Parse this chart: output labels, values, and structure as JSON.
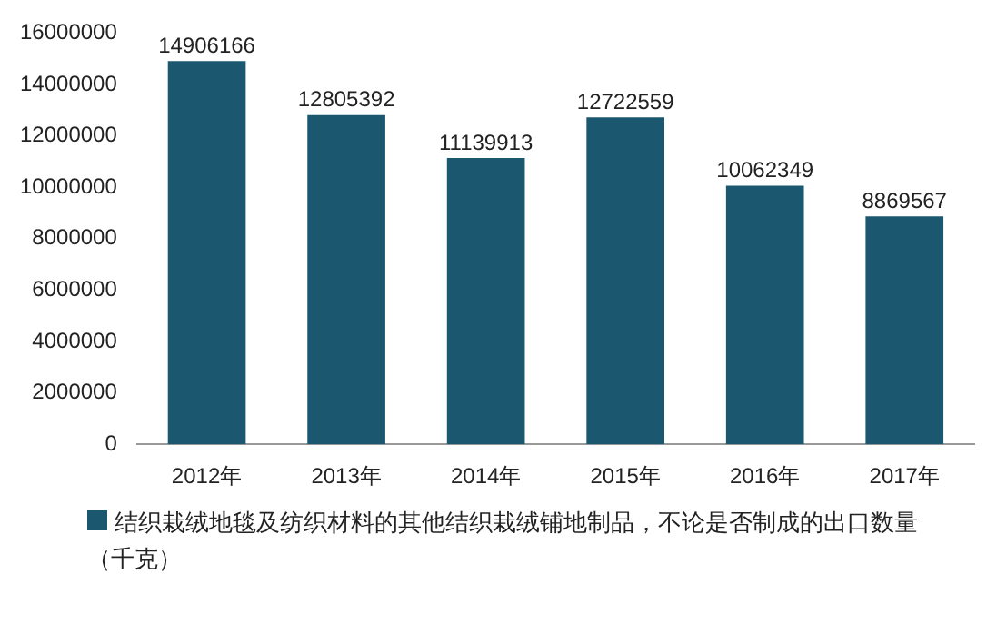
{
  "chart_data": {
    "type": "bar",
    "categories": [
      "2012年",
      "2013年",
      "2014年",
      "2015年",
      "2016年",
      "2017年"
    ],
    "series": [
      {
        "name": "结织栽绒地毯及纺织材料的其他结织栽绒铺地制品，不论是否制成的出口数量（千克）",
        "color": "#1b5870",
        "values": [
          14906166,
          12805392,
          11139913,
          12722559,
          10062349,
          8869567
        ]
      }
    ],
    "ylim": [
      0,
      16000000
    ],
    "yticks": [
      0,
      2000000,
      4000000,
      6000000,
      8000000,
      10000000,
      12000000,
      14000000,
      16000000
    ],
    "grid": false,
    "legend": "bottom",
    "data_labels": true
  }
}
